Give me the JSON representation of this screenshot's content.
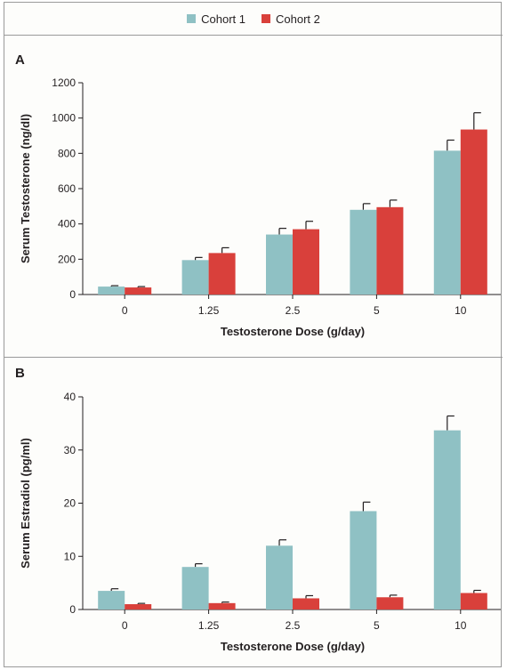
{
  "legend": [
    {
      "label": "Cohort 1",
      "color": "#8fc1c4"
    },
    {
      "label": "Cohort 2",
      "color": "#d9403b"
    }
  ],
  "chart_data": [
    {
      "panel": "A",
      "type": "bar",
      "categories": [
        "0",
        "1.25",
        "2.5",
        "5",
        "10"
      ],
      "series": [
        {
          "name": "Cohort 1",
          "values": [
            45,
            195,
            340,
            480,
            815
          ],
          "errors": [
            5,
            15,
            35,
            35,
            60
          ]
        },
        {
          "name": "Cohort 2",
          "values": [
            40,
            235,
            370,
            495,
            935
          ],
          "errors": [
            5,
            30,
            45,
            40,
            95
          ]
        }
      ],
      "xlabel": "Testosterone Dose (g/day)",
      "ylabel": "Serum Testosterone (ng/dl)",
      "ylim": [
        0,
        1200
      ],
      "yticks": [
        0,
        200,
        400,
        600,
        800,
        1000,
        1200
      ]
    },
    {
      "panel": "B",
      "type": "bar",
      "categories": [
        "0",
        "1.25",
        "2.5",
        "5",
        "10"
      ],
      "series": [
        {
          "name": "Cohort 1",
          "values": [
            3.5,
            8,
            12,
            18.5,
            33.7
          ],
          "errors": [
            0.4,
            0.6,
            1.1,
            1.7,
            2.7
          ]
        },
        {
          "name": "Cohort 2",
          "values": [
            1,
            1.2,
            2.1,
            2.3,
            3.1
          ],
          "errors": [
            0.15,
            0.2,
            0.5,
            0.4,
            0.5
          ]
        }
      ],
      "xlabel": "Testosterone Dose (g/day)",
      "ylabel": "Serum Estradiol (pg/ml)",
      "ylim": [
        0,
        40
      ],
      "yticks": [
        0,
        10,
        20,
        30,
        40
      ]
    }
  ]
}
